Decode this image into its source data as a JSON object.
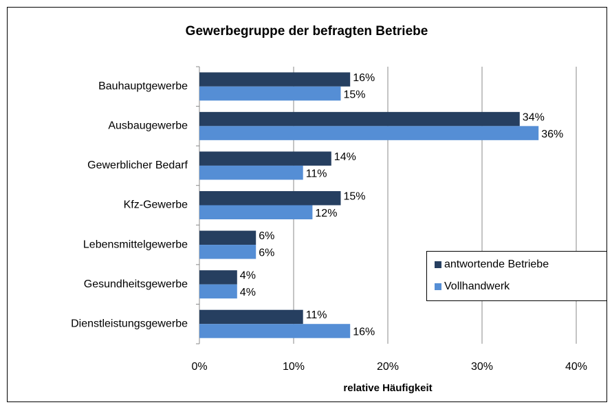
{
  "chart_data": {
    "type": "bar",
    "orientation": "horizontal",
    "title": "Gewerbegruppe der befragten Betriebe",
    "x_label": "relative Häufigkeit",
    "categories": [
      "Bauhauptgewerbe",
      "Ausbaugewerbe",
      "Gewerblicher Bedarf",
      "Kfz-Gewerbe",
      "Lebensmittelgewerbe",
      "Gesundheitsgewerbe",
      "Dienstleistungsgewerbe"
    ],
    "series": [
      {
        "name": "antwortende Betriebe",
        "color": "#263f60",
        "values": [
          16,
          34,
          14,
          15,
          6,
          4,
          11
        ],
        "value_labels": [
          "16%",
          "34%",
          "14%",
          "15%",
          "6%",
          "4%",
          "11%"
        ]
      },
      {
        "name": "Vollhandwerk",
        "color": "#558ed5",
        "values": [
          15,
          36,
          11,
          12,
          6,
          4,
          16
        ],
        "value_labels": [
          "15%",
          "36%",
          "11%",
          "12%",
          "6%",
          "4%",
          "16%"
        ]
      }
    ],
    "xlim": [
      0,
      40
    ],
    "xticks": [
      {
        "value": 0,
        "label": "0%"
      },
      {
        "value": 10,
        "label": "10%"
      },
      {
        "value": 20,
        "label": "20%"
      },
      {
        "value": 30,
        "label": "30%"
      },
      {
        "value": 40,
        "label": "40%"
      }
    ],
    "grid": true,
    "legend": "right"
  }
}
